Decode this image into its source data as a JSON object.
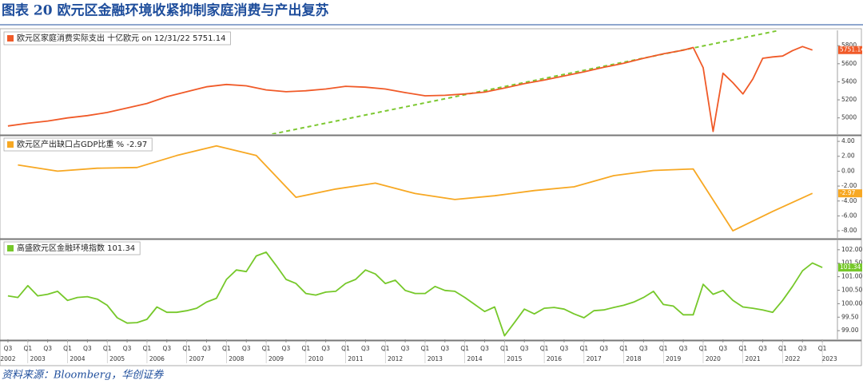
{
  "title": "图表 20 欧元区金融环境收紧抑制家庭消费与产出复苏",
  "source": "资料来源：Bloomberg，华创证券",
  "chart_data": [
    {
      "type": "line",
      "xlim": [
        2002.3,
        2023.38
      ],
      "ylim": [
        4820,
        5970
      ],
      "yticks": [
        5800,
        5600,
        5400,
        5200,
        5000
      ],
      "x": [
        2002.5,
        2003.0,
        2003.5,
        2004.0,
        2004.5,
        2005.0,
        2005.5,
        2006.0,
        2006.5,
        2007.0,
        2007.5,
        2008.0,
        2008.5,
        2009.0,
        2009.5,
        2010.0,
        2010.5,
        2011.0,
        2011.5,
        2012.0,
        2012.5,
        2013.0,
        2013.5,
        2014.0,
        2014.5,
        2015.0,
        2015.5,
        2016.0,
        2016.5,
        2017.0,
        2017.5,
        2018.0,
        2018.5,
        2019.0,
        2019.5,
        2019.75,
        2020.0,
        2020.25,
        2020.5,
        2020.75,
        2021.0,
        2021.25,
        2021.5,
        2021.75,
        2022.0,
        2022.25,
        2022.5,
        2022.75
      ],
      "series": [
        {
          "name": "欧元区家庭消费实际支出 十亿欧元 on 12/31/22 5751.14",
          "color": "#f05a28",
          "values": [
            4910,
            4940,
            4965,
            5000,
            5025,
            5060,
            5110,
            5160,
            5235,
            5290,
            5345,
            5370,
            5355,
            5310,
            5290,
            5300,
            5320,
            5350,
            5340,
            5320,
            5280,
            5245,
            5250,
            5265,
            5285,
            5330,
            5380,
            5420,
            5465,
            5510,
            5560,
            5605,
            5660,
            5710,
            5750,
            5780,
            5555,
            4850,
            5495,
            5390,
            5265,
            5430,
            5660,
            5675,
            5685,
            5745,
            5790,
            5751.14
          ]
        }
      ],
      "trend": {
        "color": "#7dc832",
        "x": [
          2009.15,
          2021.92
        ],
        "values": [
          4820,
          5970
        ]
      }
    },
    {
      "type": "line",
      "xlim": [
        2002.3,
        2023.38
      ],
      "ylim": [
        -8.95,
        4.65
      ],
      "yticks": [
        {
          "value": 4,
          "label": "4.00"
        },
        {
          "value": 2,
          "label": "2.00"
        },
        {
          "value": 0,
          "label": "0.00"
        },
        {
          "value": -2,
          "label": "-2.00"
        },
        {
          "value": -4,
          "label": "-4.00"
        },
        {
          "value": -6,
          "label": "-6.00"
        },
        {
          "value": -8,
          "label": "-8.00"
        }
      ],
      "x": [
        2002.75,
        2003.75,
        2004.75,
        2005.75,
        2006.75,
        2007.75,
        2008.75,
        2009.75,
        2010.75,
        2011.75,
        2012.75,
        2013.75,
        2014.75,
        2015.75,
        2016.75,
        2017.75,
        2018.75,
        2019.75,
        2020.75,
        2021.75,
        2022.75
      ],
      "series": [
        {
          "name": "欧元区产出缺口占GDP比重 % -2.97",
          "color": "#f7a823",
          "values": [
            0.84,
            0,
            0.4,
            0.5,
            2.1,
            3.4,
            2.1,
            -3.5,
            -2.4,
            -1.6,
            -3.0,
            -3.8,
            -3.3,
            -2.6,
            -2.1,
            -0.6,
            0.1,
            0.3,
            -8.0,
            -5.4,
            -2.97
          ]
        }
      ]
    },
    {
      "type": "line",
      "xlim": [
        2002.3,
        2023.38
      ],
      "ylim": [
        98.68,
        102.35
      ],
      "yticks": [
        {
          "value": 102,
          "label": "102.00"
        },
        {
          "value": 101.5,
          "label": "101.50"
        },
        {
          "value": 101,
          "label": "101.00"
        },
        {
          "value": 100.5,
          "label": "100.50"
        },
        {
          "value": 100,
          "label": "100.00"
        },
        {
          "value": 99.5,
          "label": "99.50"
        },
        {
          "value": 99,
          "label": "99.00"
        }
      ],
      "x": [
        2002.5,
        2002.75,
        2003.0,
        2003.25,
        2003.5,
        2003.75,
        2004.0,
        2004.25,
        2004.5,
        2004.75,
        2005.0,
        2005.25,
        2005.5,
        2005.75,
        2006.0,
        2006.25,
        2006.5,
        2006.75,
        2007.0,
        2007.25,
        2007.5,
        2007.75,
        2008.0,
        2008.25,
        2008.5,
        2008.75,
        2009.0,
        2009.25,
        2009.5,
        2009.75,
        2010.0,
        2010.25,
        2010.5,
        2010.75,
        2011.0,
        2011.25,
        2011.5,
        2011.75,
        2012.0,
        2012.25,
        2012.5,
        2012.75,
        2013.0,
        2013.25,
        2013.5,
        2013.75,
        2014.0,
        2014.25,
        2014.5,
        2014.75,
        2015.0,
        2015.25,
        2015.5,
        2015.75,
        2016.0,
        2016.25,
        2016.5,
        2016.75,
        2017.0,
        2017.25,
        2017.5,
        2017.75,
        2018.0,
        2018.25,
        2018.5,
        2018.75,
        2019.0,
        2019.25,
        2019.5,
        2019.75,
        2020.0,
        2020.25,
        2020.5,
        2020.75,
        2021.0,
        2021.25,
        2021.5,
        2021.75,
        2022.0,
        2022.25,
        2022.5,
        2022.75,
        2023.0
      ],
      "series": [
        {
          "name": "高盛欧元区金融环境指数 101.34",
          "color": "#76c82a",
          "values": [
            100.29,
            100.23,
            100.67,
            100.29,
            100.35,
            100.46,
            100.12,
            100.23,
            100.26,
            100.17,
            99.94,
            99.48,
            99.28,
            99.3,
            99.42,
            99.88,
            99.68,
            99.68,
            99.74,
            99.83,
            100.06,
            100.2,
            100.9,
            101.25,
            101.19,
            101.77,
            101.91,
            101.42,
            100.9,
            100.75,
            100.38,
            100.32,
            100.43,
            100.46,
            100.75,
            100.9,
            101.25,
            101.1,
            100.75,
            100.87,
            100.49,
            100.38,
            100.38,
            100.64,
            100.49,
            100.46,
            100.23,
            99.97,
            99.71,
            99.88,
            98.81,
            99.3,
            99.8,
            99.62,
            99.83,
            99.86,
            99.8,
            99.62,
            99.48,
            99.74,
            99.77,
            99.86,
            99.94,
            100.06,
            100.23,
            100.46,
            99.97,
            99.91,
            99.59,
            99.59,
            100.72,
            100.35,
            100.49,
            100.12,
            99.88,
            99.83,
            99.77,
            99.68,
            100.12,
            100.64,
            101.22,
            101.51,
            101.34
          ]
        }
      ],
      "xticks": [
        {
          "value": 2002.5,
          "label": "Q3"
        },
        {
          "value": 2003.0,
          "label": "Q1"
        },
        {
          "value": 2003.5,
          "label": "Q3"
        },
        {
          "value": 2004.0,
          "label": "Q1"
        },
        {
          "value": 2004.5,
          "label": "Q3"
        },
        {
          "value": 2005.0,
          "label": "Q1"
        },
        {
          "value": 2005.5,
          "label": "Q3"
        },
        {
          "value": 2006.0,
          "label": "Q1"
        },
        {
          "value": 2006.5,
          "label": "Q3"
        },
        {
          "value": 2007.0,
          "label": "Q1"
        },
        {
          "value": 2007.5,
          "label": "Q3"
        },
        {
          "value": 2008.0,
          "label": "Q1"
        },
        {
          "value": 2008.5,
          "label": "Q3"
        },
        {
          "value": 2009.0,
          "label": "Q1"
        },
        {
          "value": 2009.5,
          "label": "Q3"
        },
        {
          "value": 2010.0,
          "label": "Q1"
        },
        {
          "value": 2010.5,
          "label": "Q3"
        },
        {
          "value": 2011.0,
          "label": "Q1"
        },
        {
          "value": 2011.5,
          "label": "Q3"
        },
        {
          "value": 2012.0,
          "label": "Q1"
        },
        {
          "value": 2012.5,
          "label": "Q3"
        },
        {
          "value": 2013.0,
          "label": "Q1"
        },
        {
          "value": 2013.5,
          "label": "Q3"
        },
        {
          "value": 2014.0,
          "label": "Q1"
        },
        {
          "value": 2014.5,
          "label": "Q3"
        },
        {
          "value": 2015.0,
          "label": "Q1"
        },
        {
          "value": 2015.5,
          "label": "Q3"
        },
        {
          "value": 2016.0,
          "label": "Q1"
        },
        {
          "value": 2016.5,
          "label": "Q3"
        },
        {
          "value": 2017.0,
          "label": "Q1"
        },
        {
          "value": 2017.5,
          "label": "Q3"
        },
        {
          "value": 2018.0,
          "label": "Q1"
        },
        {
          "value": 2018.5,
          "label": "Q3"
        },
        {
          "value": 2019.0,
          "label": "Q1"
        },
        {
          "value": 2019.5,
          "label": "Q3"
        },
        {
          "value": 2020.0,
          "label": "Q1"
        },
        {
          "value": 2020.5,
          "label": "Q3"
        },
        {
          "value": 2021.0,
          "label": "Q1"
        },
        {
          "value": 2021.5,
          "label": "Q3"
        },
        {
          "value": 2022.0,
          "label": "Q1"
        },
        {
          "value": 2022.5,
          "label": "Q3"
        },
        {
          "value": 2023.0,
          "label": "Q1"
        }
      ],
      "years": [
        2002,
        2003,
        2004,
        2005,
        2006,
        2007,
        2008,
        2009,
        2010,
        2011,
        2012,
        2013,
        2014,
        2015,
        2016,
        2017,
        2018,
        2019,
        2020,
        2021,
        2022,
        2023
      ]
    }
  ]
}
